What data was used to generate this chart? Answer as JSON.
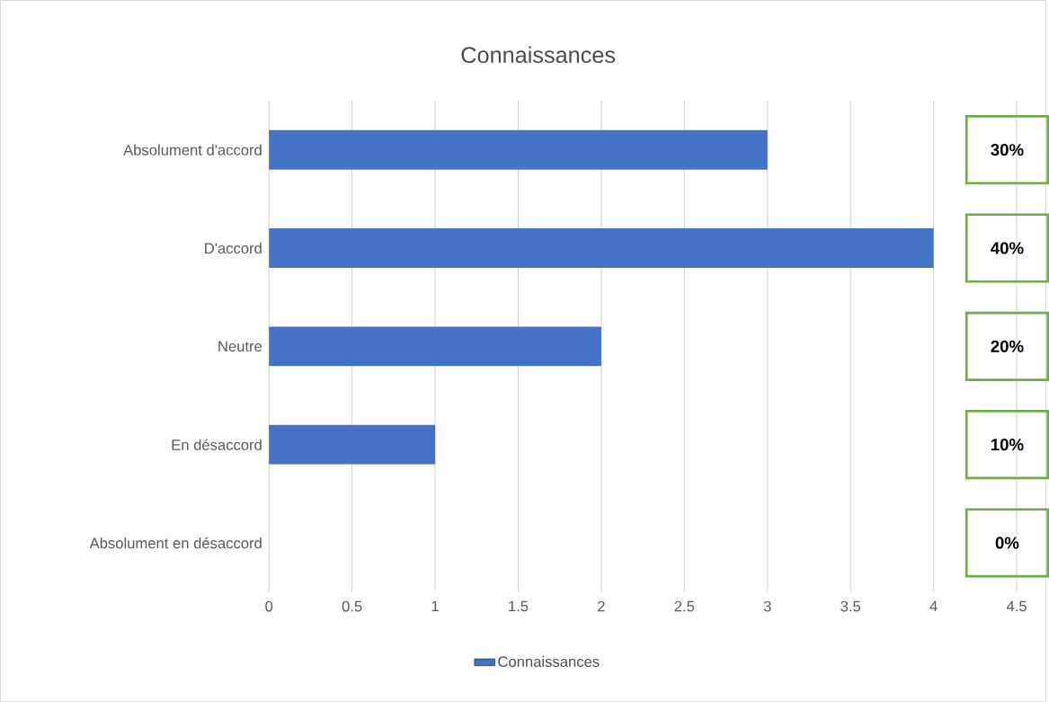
{
  "chart_data": {
    "type": "bar",
    "orientation": "horizontal",
    "title": "Connaissances",
    "categories": [
      "Absolument d'accord",
      "D'accord",
      "Neutre",
      "En désaccord",
      "Absolument en désaccord"
    ],
    "series": [
      {
        "name": "Connaissances",
        "color": "#4472c4",
        "values": [
          3,
          4,
          2,
          1,
          0
        ]
      }
    ],
    "xlim": [
      0,
      4.5
    ],
    "xticks": [
      0,
      0.5,
      1,
      1.5,
      2,
      2.5,
      3,
      3.5,
      4,
      4.5
    ],
    "grid": "x",
    "legend": "bottom",
    "annotations": [
      "30%",
      "40%",
      "20%",
      "10%",
      "0%"
    ]
  }
}
